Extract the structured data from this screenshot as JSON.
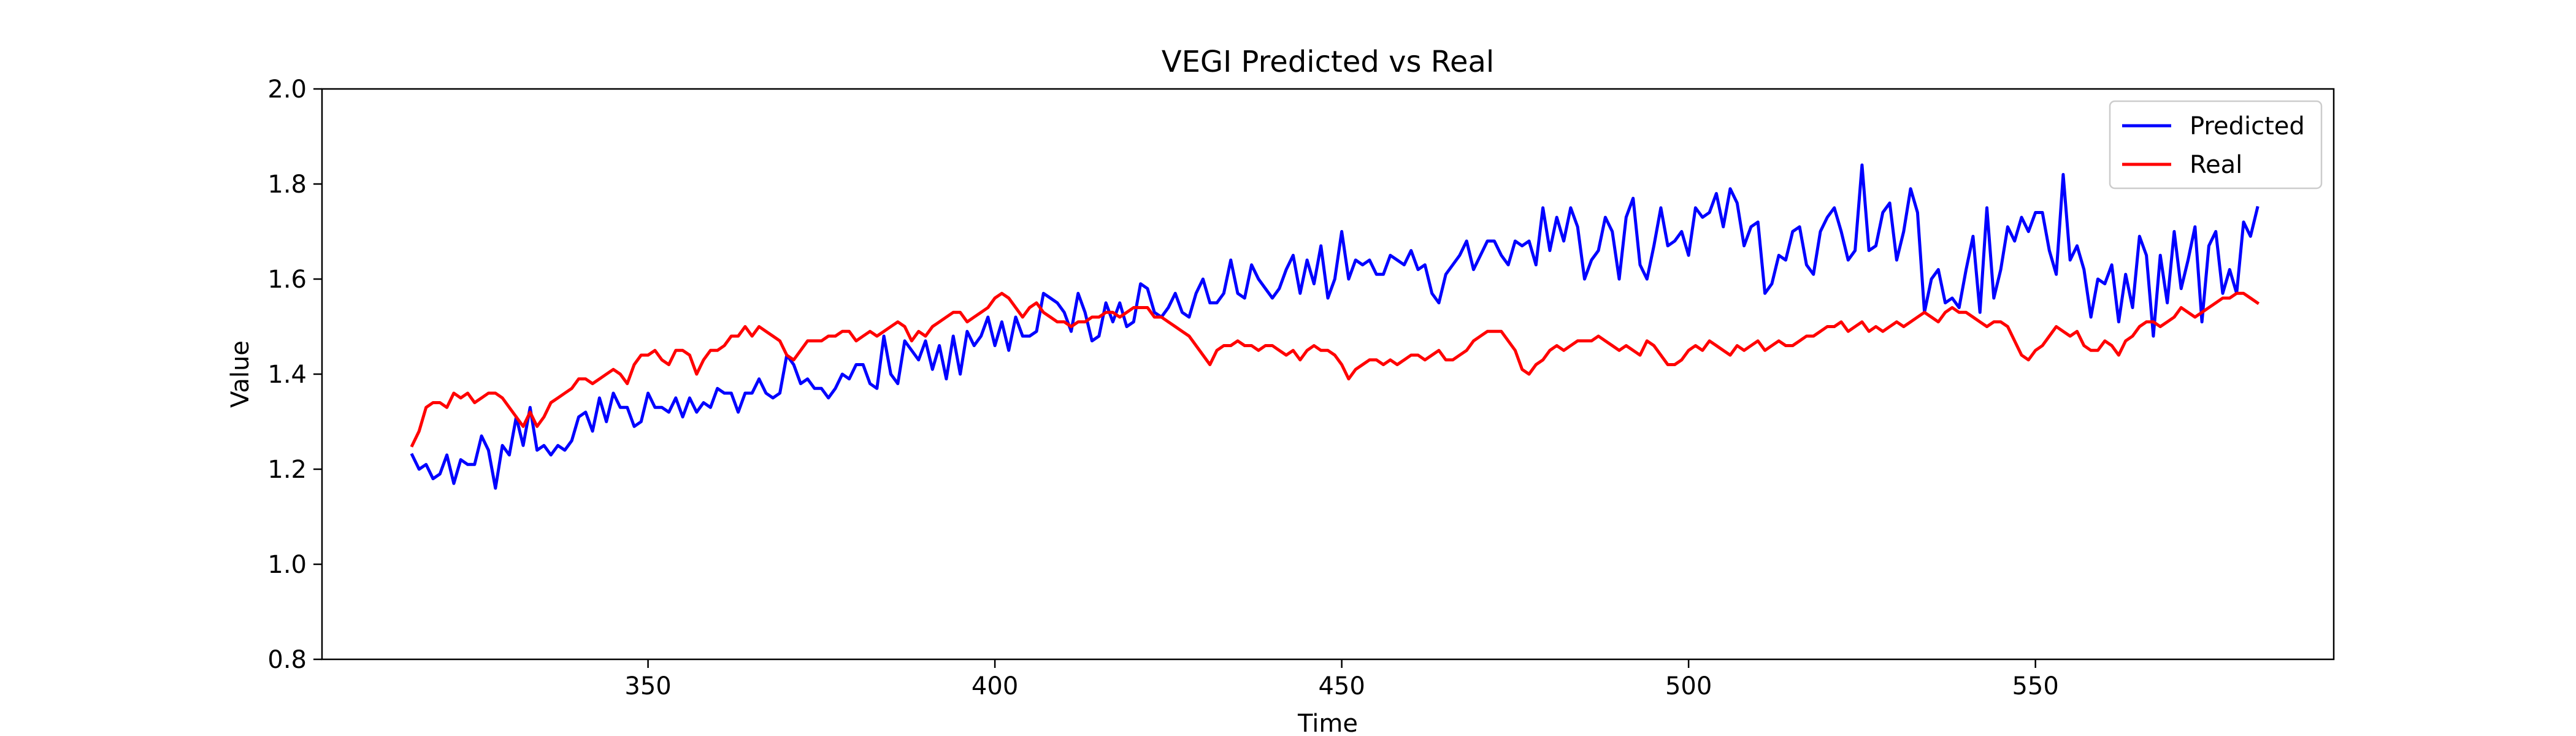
{
  "chart_data": {
    "type": "line",
    "title": "VEGI Predicted vs Real",
    "xlabel": "Time",
    "ylabel": "Value",
    "xlim": [
      303,
      593
    ],
    "ylim": [
      0.8,
      2.0
    ],
    "xticks": [
      350,
      400,
      450,
      500,
      550
    ],
    "yticks": [
      0.8,
      1.0,
      1.2,
      1.4,
      1.6,
      1.8,
      2.0
    ],
    "grid": false,
    "legend_position": "top-right",
    "x_start": 316,
    "x_step": 1,
    "series": [
      {
        "name": "Predicted",
        "color": "#0000ff",
        "values": [
          1.23,
          1.2,
          1.21,
          1.18,
          1.19,
          1.23,
          1.17,
          1.22,
          1.21,
          1.21,
          1.27,
          1.24,
          1.16,
          1.25,
          1.23,
          1.31,
          1.25,
          1.33,
          1.24,
          1.25,
          1.23,
          1.25,
          1.24,
          1.26,
          1.31,
          1.32,
          1.28,
          1.35,
          1.3,
          1.36,
          1.33,
          1.33,
          1.29,
          1.3,
          1.36,
          1.33,
          1.33,
          1.32,
          1.35,
          1.31,
          1.35,
          1.32,
          1.34,
          1.33,
          1.37,
          1.36,
          1.36,
          1.32,
          1.36,
          1.36,
          1.39,
          1.36,
          1.35,
          1.36,
          1.44,
          1.42,
          1.38,
          1.39,
          1.37,
          1.37,
          1.35,
          1.37,
          1.4,
          1.39,
          1.42,
          1.42,
          1.38,
          1.37,
          1.48,
          1.4,
          1.38,
          1.47,
          1.45,
          1.43,
          1.47,
          1.41,
          1.46,
          1.39,
          1.48,
          1.4,
          1.49,
          1.46,
          1.48,
          1.52,
          1.46,
          1.51,
          1.45,
          1.52,
          1.48,
          1.48,
          1.49,
          1.57,
          1.56,
          1.55,
          1.53,
          1.49,
          1.57,
          1.53,
          1.47,
          1.48,
          1.55,
          1.51,
          1.55,
          1.5,
          1.51,
          1.59,
          1.58,
          1.53,
          1.52,
          1.54,
          1.57,
          1.53,
          1.52,
          1.57,
          1.6,
          1.55,
          1.55,
          1.57,
          1.64,
          1.57,
          1.56,
          1.63,
          1.6,
          1.58,
          1.56,
          1.58,
          1.62,
          1.65,
          1.57,
          1.64,
          1.59,
          1.67,
          1.56,
          1.6,
          1.7,
          1.6,
          1.64,
          1.63,
          1.64,
          1.61,
          1.61,
          1.65,
          1.64,
          1.63,
          1.66,
          1.62,
          1.63,
          1.57,
          1.55,
          1.61,
          1.63,
          1.65,
          1.68,
          1.62,
          1.65,
          1.68,
          1.68,
          1.65,
          1.63,
          1.68,
          1.67,
          1.68,
          1.63,
          1.75,
          1.66,
          1.73,
          1.68,
          1.75,
          1.71,
          1.6,
          1.64,
          1.66,
          1.73,
          1.7,
          1.6,
          1.73,
          1.77,
          1.63,
          1.6,
          1.67,
          1.75,
          1.67,
          1.68,
          1.7,
          1.65,
          1.75,
          1.73,
          1.74,
          1.78,
          1.71,
          1.79,
          1.76,
          1.67,
          1.71,
          1.72,
          1.57,
          1.59,
          1.65,
          1.64,
          1.7,
          1.71,
          1.63,
          1.61,
          1.7,
          1.73,
          1.75,
          1.7,
          1.64,
          1.66,
          1.84,
          1.66,
          1.67,
          1.74,
          1.76,
          1.64,
          1.7,
          1.79,
          1.74,
          1.53,
          1.6,
          1.62,
          1.55,
          1.56,
          1.54,
          1.62,
          1.69,
          1.53,
          1.75,
          1.56,
          1.62,
          1.71,
          1.68,
          1.73,
          1.7,
          1.74,
          1.74,
          1.66,
          1.61,
          1.82,
          1.64,
          1.67,
          1.62,
          1.52,
          1.6,
          1.59,
          1.63,
          1.51,
          1.61,
          1.54,
          1.69,
          1.65,
          1.48,
          1.65,
          1.55,
          1.7,
          1.58,
          1.64,
          1.71,
          1.51,
          1.67,
          1.7,
          1.57,
          1.62,
          1.57,
          1.72,
          1.69,
          1.75
        ]
      },
      {
        "name": "Real",
        "color": "#ff0000",
        "values": [
          1.25,
          1.28,
          1.33,
          1.34,
          1.34,
          1.33,
          1.36,
          1.35,
          1.36,
          1.34,
          1.35,
          1.36,
          1.36,
          1.35,
          1.33,
          1.31,
          1.29,
          1.32,
          1.29,
          1.31,
          1.34,
          1.35,
          1.36,
          1.37,
          1.39,
          1.39,
          1.38,
          1.39,
          1.4,
          1.41,
          1.4,
          1.38,
          1.42,
          1.44,
          1.44,
          1.45,
          1.43,
          1.42,
          1.45,
          1.45,
          1.44,
          1.4,
          1.43,
          1.45,
          1.45,
          1.46,
          1.48,
          1.48,
          1.5,
          1.48,
          1.5,
          1.49,
          1.48,
          1.47,
          1.44,
          1.43,
          1.45,
          1.47,
          1.47,
          1.47,
          1.48,
          1.48,
          1.49,
          1.49,
          1.47,
          1.48,
          1.49,
          1.48,
          1.49,
          1.5,
          1.51,
          1.5,
          1.47,
          1.49,
          1.48,
          1.5,
          1.51,
          1.52,
          1.53,
          1.53,
          1.51,
          1.52,
          1.53,
          1.54,
          1.56,
          1.57,
          1.56,
          1.54,
          1.52,
          1.54,
          1.55,
          1.53,
          1.52,
          1.51,
          1.51,
          1.5,
          1.51,
          1.51,
          1.52,
          1.52,
          1.53,
          1.53,
          1.52,
          1.53,
          1.54,
          1.54,
          1.54,
          1.52,
          1.52,
          1.51,
          1.5,
          1.49,
          1.48,
          1.46,
          1.44,
          1.42,
          1.45,
          1.46,
          1.46,
          1.47,
          1.46,
          1.46,
          1.45,
          1.46,
          1.46,
          1.45,
          1.44,
          1.45,
          1.43,
          1.45,
          1.46,
          1.45,
          1.45,
          1.44,
          1.42,
          1.39,
          1.41,
          1.42,
          1.43,
          1.43,
          1.42,
          1.43,
          1.42,
          1.43,
          1.44,
          1.44,
          1.43,
          1.44,
          1.45,
          1.43,
          1.43,
          1.44,
          1.45,
          1.47,
          1.48,
          1.49,
          1.49,
          1.49,
          1.47,
          1.45,
          1.41,
          1.4,
          1.42,
          1.43,
          1.45,
          1.46,
          1.45,
          1.46,
          1.47,
          1.47,
          1.47,
          1.48,
          1.47,
          1.46,
          1.45,
          1.46,
          1.45,
          1.44,
          1.47,
          1.46,
          1.44,
          1.42,
          1.42,
          1.43,
          1.45,
          1.46,
          1.45,
          1.47,
          1.46,
          1.45,
          1.44,
          1.46,
          1.45,
          1.46,
          1.47,
          1.45,
          1.46,
          1.47,
          1.46,
          1.46,
          1.47,
          1.48,
          1.48,
          1.49,
          1.5,
          1.5,
          1.51,
          1.49,
          1.5,
          1.51,
          1.49,
          1.5,
          1.49,
          1.5,
          1.51,
          1.5,
          1.51,
          1.52,
          1.53,
          1.52,
          1.51,
          1.53,
          1.54,
          1.53,
          1.53,
          1.52,
          1.51,
          1.5,
          1.51,
          1.51,
          1.5,
          1.47,
          1.44,
          1.43,
          1.45,
          1.46,
          1.48,
          1.5,
          1.49,
          1.48,
          1.49,
          1.46,
          1.45,
          1.45,
          1.47,
          1.46,
          1.44,
          1.47,
          1.48,
          1.5,
          1.51,
          1.51,
          1.5,
          1.51,
          1.52,
          1.54,
          1.53,
          1.52,
          1.53,
          1.54,
          1.55,
          1.56,
          1.56,
          1.57,
          1.57,
          1.56,
          1.55
        ]
      }
    ]
  }
}
